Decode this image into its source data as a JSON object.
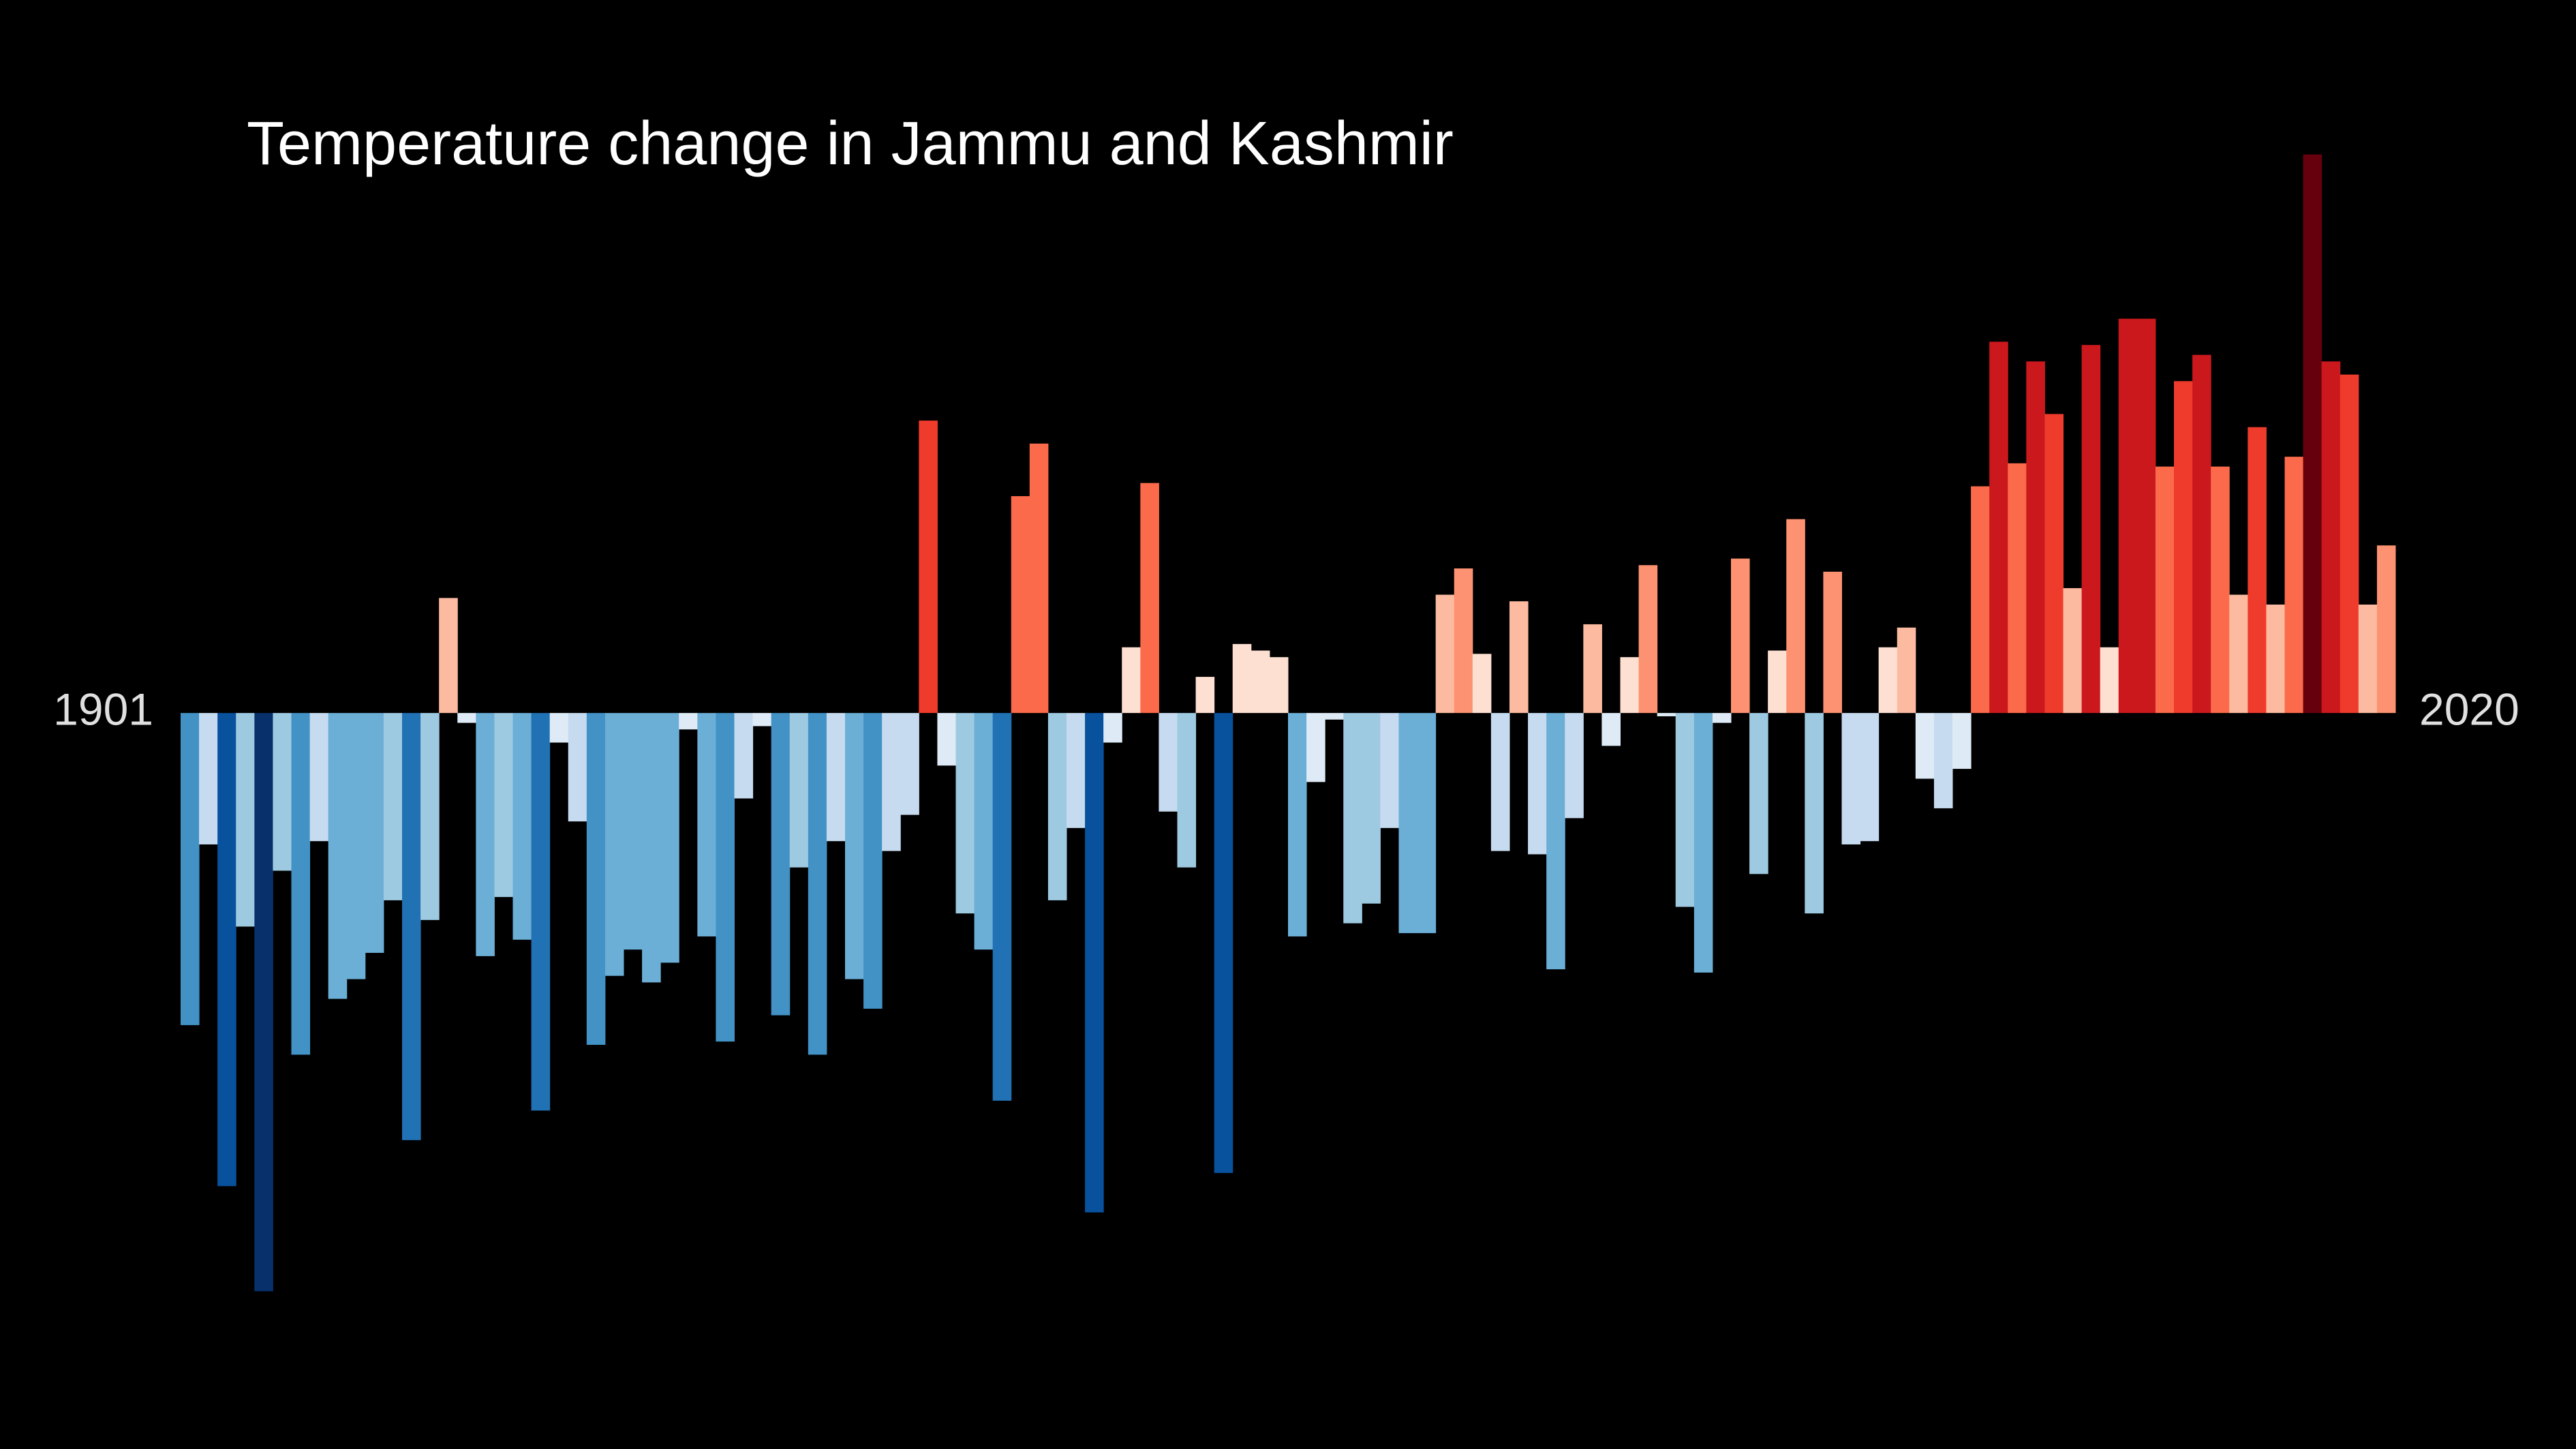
{
  "chart_data": {
    "type": "bar",
    "title": "Temperature change in Jammu and Kashmir",
    "x": [
      1901,
      1902,
      1903,
      1904,
      1905,
      1906,
      1907,
      1908,
      1909,
      1910,
      1911,
      1912,
      1913,
      1914,
      1915,
      1916,
      1917,
      1918,
      1919,
      1920,
      1921,
      1922,
      1923,
      1924,
      1925,
      1926,
      1927,
      1928,
      1929,
      1930,
      1931,
      1932,
      1933,
      1934,
      1935,
      1936,
      1937,
      1938,
      1939,
      1940,
      1941,
      1942,
      1943,
      1944,
      1945,
      1946,
      1947,
      1948,
      1949,
      1950,
      1951,
      1952,
      1953,
      1954,
      1955,
      1956,
      1957,
      1958,
      1959,
      1960,
      1961,
      1962,
      1963,
      1964,
      1965,
      1966,
      1967,
      1968,
      1969,
      1970,
      1971,
      1972,
      1973,
      1974,
      1975,
      1976,
      1977,
      1978,
      1979,
      1980,
      1981,
      1982,
      1983,
      1984,
      1985,
      1986,
      1987,
      1988,
      1989,
      1990,
      1991,
      1992,
      1993,
      1994,
      1995,
      1996,
      1997,
      1998,
      1999,
      2000,
      2001,
      2002,
      2003,
      2004,
      2005,
      2006,
      2007,
      2008,
      2009,
      2010,
      2011,
      2012,
      2013,
      2014,
      2015,
      2016,
      2017,
      2018,
      2019,
      2020
    ],
    "values": [
      -0.95,
      -0.4,
      -1.44,
      -0.65,
      -1.76,
      -0.48,
      -1.04,
      -0.39,
      -0.87,
      -0.81,
      -0.73,
      -0.57,
      -1.3,
      -0.63,
      0.35,
      -0.03,
      -0.74,
      -0.56,
      -0.69,
      -1.21,
      -0.09,
      -0.33,
      -1.01,
      -0.8,
      -0.72,
      -0.82,
      -0.76,
      -0.05,
      -0.68,
      -1.0,
      -0.26,
      -0.04,
      -0.92,
      -0.47,
      -1.04,
      -0.39,
      -0.81,
      -0.9,
      -0.42,
      -0.31,
      0.89,
      -0.16,
      -0.61,
      -0.72,
      -1.18,
      0.66,
      0.82,
      -0.57,
      -0.35,
      -1.52,
      -0.09,
      0.2,
      0.7,
      -0.3,
      -0.47,
      0.11,
      -1.4,
      0.21,
      0.19,
      0.17,
      -0.68,
      -0.21,
      -0.02,
      -0.64,
      -0.58,
      -0.35,
      -0.67,
      -0.67,
      0.36,
      0.44,
      0.18,
      -0.42,
      0.34,
      -0.43,
      -0.78,
      -0.32,
      0.27,
      -0.1,
      0.17,
      0.45,
      -0.01,
      -0.59,
      -0.79,
      -0.03,
      0.47,
      -0.49,
      0.19,
      0.59,
      -0.61,
      0.43,
      -0.4,
      -0.39,
      0.2,
      0.26,
      -0.2,
      -0.29,
      -0.17,
      0.69,
      1.13,
      0.76,
      1.07,
      0.91,
      0.38,
      1.12,
      0.2,
      1.2,
      1.2,
      0.75,
      1.01,
      1.09,
      0.75,
      0.36,
      0.87,
      0.33,
      0.78,
      1.7,
      1.07,
      1.03,
      0.33,
      0.51
    ],
    "xlim": [
      1900.5,
      2020.5
    ],
    "xticks": [
      1901,
      2020
    ],
    "ylim": [
      -2.24,
      2.17
    ],
    "colormap": [
      "#08306b",
      "#08519c",
      "#2171b5",
      "#4292c6",
      "#6baed6",
      "#9ecae1",
      "#c6dbef",
      "#deebf7",
      "#fee0d2",
      "#fcbba1",
      "#fc9272",
      "#fb6a4a",
      "#ef3b2c",
      "#cb181d",
      "#a50f15",
      "#67000d"
    ]
  }
}
